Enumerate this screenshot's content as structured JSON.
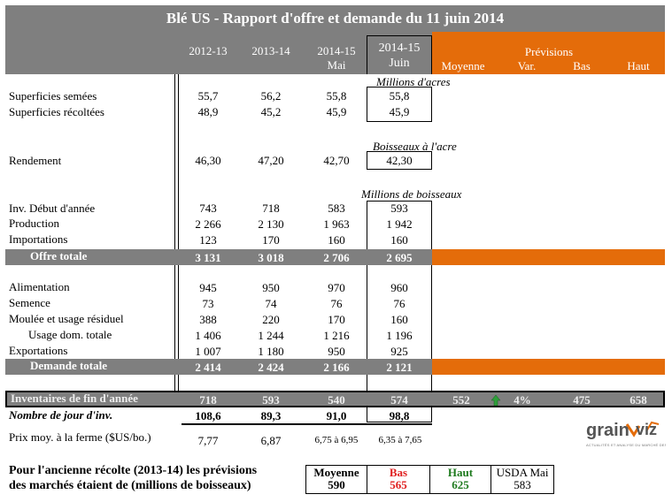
{
  "title": "Blé US - Rapport d'offre et demande du 11 juin 2014",
  "headers": {
    "c1": "2012-13",
    "c2": "2013-14",
    "c3_l1": "2014-15",
    "c3_l2": "Mai",
    "c4_l1": "2014-15",
    "c4_l2": "Juin",
    "previsions": "Prévisions",
    "moyenne": "Moyenne",
    "var": "Var.",
    "bas": "Bas",
    "haut": "Haut"
  },
  "units": {
    "acres": "Millions d'acres",
    "boisseaux_acre": "Boisseaux à l'acre",
    "boisseaux": "Millions de boisseaux"
  },
  "rows": {
    "sup_semees": {
      "label": "Superficies semées",
      "v": [
        "55,7",
        "56,2",
        "55,8",
        "55,8"
      ]
    },
    "sup_recoltees": {
      "label": "Superficies récoltées",
      "v": [
        "48,9",
        "45,2",
        "45,9",
        "45,9"
      ]
    },
    "rendement": {
      "label": "Rendement",
      "v": [
        "46,30",
        "47,20",
        "42,70",
        "42,30"
      ]
    },
    "inv_debut": {
      "label": "Inv. Début d'année",
      "v": [
        "743",
        "718",
        "583",
        "593"
      ]
    },
    "production": {
      "label": "Production",
      "v": [
        "2 266",
        "2 130",
        "1 963",
        "1 942"
      ]
    },
    "importations": {
      "label": "Importations",
      "v": [
        "123",
        "170",
        "160",
        "160"
      ]
    },
    "offre_totale": {
      "label": "Offre totale",
      "v": [
        "3 131",
        "3 018",
        "2 706",
        "2 695"
      ]
    },
    "alimentation": {
      "label": "Alimentation",
      "v": [
        "945",
        "950",
        "970",
        "960"
      ]
    },
    "semence": {
      "label": "Semence",
      "v": [
        "73",
        "74",
        "76",
        "76"
      ]
    },
    "moulee": {
      "label": "Moulée et usage résiduel",
      "v": [
        "388",
        "220",
        "170",
        "160"
      ]
    },
    "usage_dom": {
      "label": "Usage dom. totale",
      "v": [
        "1 406",
        "1 244",
        "1 216",
        "1 196"
      ]
    },
    "exportations": {
      "label": "Exportations",
      "v": [
        "1 007",
        "1 180",
        "950",
        "925"
      ]
    },
    "demande_totale": {
      "label": "Demande totale",
      "v": [
        "2 414",
        "2 424",
        "2 166",
        "2 121"
      ]
    },
    "inventaires_fin": {
      "label": "Inventaires de fin d'année",
      "v": [
        "718",
        "593",
        "540",
        "574"
      ],
      "moyenne": "552",
      "var": "4%",
      "bas": "475",
      "haut": "658"
    },
    "nombre_jour": {
      "label": "Nombre de jour d'inv.",
      "v": [
        "108,6",
        "89,3",
        "91,0",
        "98,8"
      ]
    },
    "prix": {
      "label": "Prix moy. à la ferme ($US/bo.)",
      "v": [
        "7,77",
        "6,87",
        "6,75 à 6,95",
        "6,35 à 7,65"
      ]
    }
  },
  "footer": {
    "text_l1": "Pour l'ancienne récolte (2013-14) les prévisions",
    "text_l2": "des marchés étaient de (millions de boisseaux)",
    "moyenne_label": "Moyenne",
    "moyenne_value": "590",
    "bas_label": "Bas",
    "bas_value": "565",
    "haut_label": "Haut",
    "haut_value": "625",
    "usda_label": "USDA Mai",
    "usda_value": "583"
  },
  "logo": {
    "name_part1": "grain",
    "name_part2": "viz",
    "tagline": "ACTUALITÉS ET ANALYSE DU MARCHÉ DES GRAINS"
  },
  "colors": {
    "gray": "#7f7f7f",
    "orange": "#e46c0a",
    "green_arrow": "#2e9e3a",
    "bas_red": "#e02020",
    "haut_green": "#1e7a1e"
  },
  "icons": {
    "var_arrow": "up-arrow-icon"
  }
}
